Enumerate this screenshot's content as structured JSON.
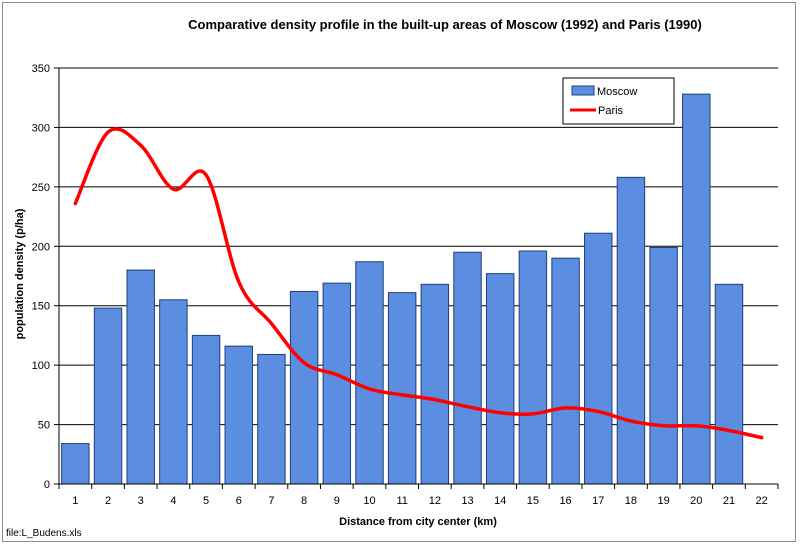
{
  "chart_data": {
    "type": "bar",
    "title": "Comparative density profile in the built-up areas of Moscow (1992)  and Paris (1990)",
    "xlabel": "Distance from city center (km)",
    "ylabel": "population density (p/ha)",
    "ylim": [
      0,
      350
    ],
    "yticks": [
      0,
      50,
      100,
      150,
      200,
      250,
      300,
      350
    ],
    "categories": [
      "1",
      "2",
      "3",
      "4",
      "5",
      "6",
      "7",
      "8",
      "9",
      "10",
      "11",
      "12",
      "13",
      "14",
      "15",
      "16",
      "17",
      "18",
      "19",
      "20",
      "21",
      "22"
    ],
    "grid": true,
    "legend_position": "top-right",
    "series": [
      {
        "name": "Moscow",
        "kind": "bar",
        "color": "#5b8ee0",
        "edge_color": "#1f3f7a",
        "values": [
          34,
          148,
          180,
          155,
          125,
          116,
          109,
          162,
          169,
          187,
          161,
          168,
          195,
          177,
          196,
          190,
          211,
          258,
          199,
          328,
          168,
          null
        ]
      },
      {
        "name": "Paris",
        "kind": "line",
        "color": "#ff0000",
        "values": [
          236,
          296,
          285,
          248,
          260,
          170,
          135,
          102,
          92,
          80,
          75,
          71,
          65,
          60,
          59,
          64,
          61,
          53,
          49,
          49,
          45,
          39
        ]
      }
    ]
  },
  "footer": {
    "file_label": "file:L_Budens.xls"
  }
}
